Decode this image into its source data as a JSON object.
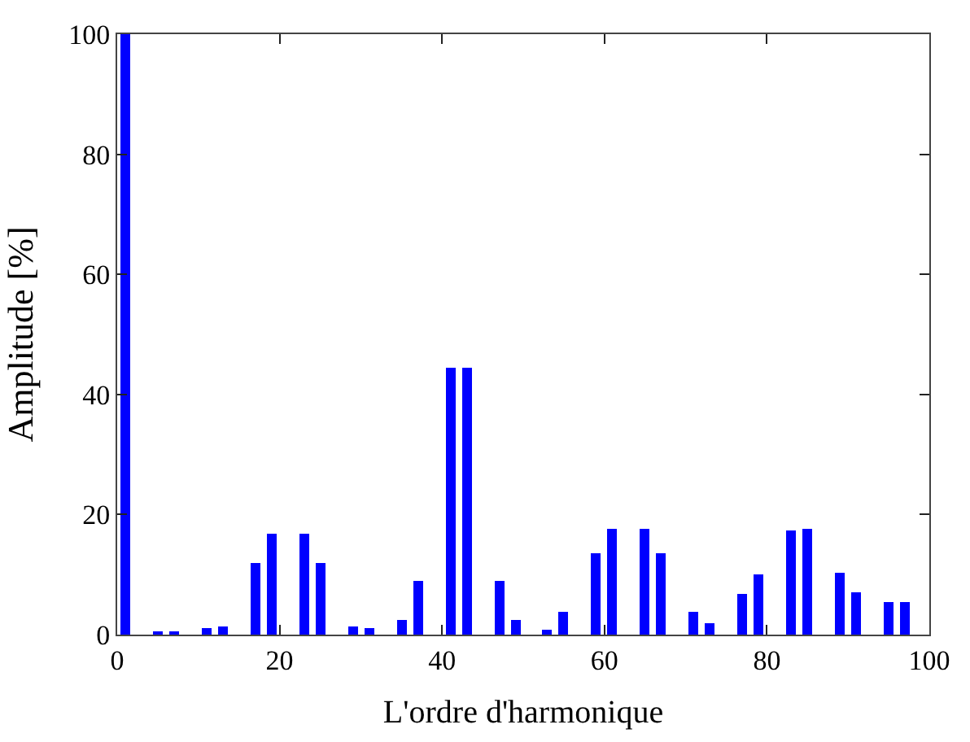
{
  "chart_data": {
    "type": "bar",
    "xlabel": "L'ordre d'harmonique",
    "ylabel": "Amplitude [%]",
    "x": [
      1,
      5,
      7,
      11,
      13,
      17,
      19,
      23,
      25,
      29,
      31,
      35,
      37,
      41,
      43,
      47,
      49,
      53,
      55,
      59,
      61,
      65,
      67,
      71,
      73,
      77,
      79,
      83,
      85,
      89,
      91,
      95,
      97
    ],
    "values": [
      100,
      0.3,
      0.3,
      1.1,
      1.4,
      11.8,
      16.8,
      16.8,
      11.8,
      1.3,
      1.2,
      2.4,
      9,
      44.5,
      44.5,
      9,
      2.5,
      0.9,
      3.9,
      13.6,
      17.6,
      17.6,
      13.5,
      3.8,
      1.9,
      6.9,
      10,
      17.4,
      17.5,
      10.2,
      7.1,
      5.5,
      5.3
    ],
    "color": "#0000ff",
    "xlim": [
      0,
      100
    ],
    "xticks": [
      0,
      20,
      40,
      60,
      80,
      100
    ],
    "ylim": [
      0,
      100
    ],
    "yticks": [
      0,
      20,
      40,
      60,
      80,
      100
    ]
  }
}
